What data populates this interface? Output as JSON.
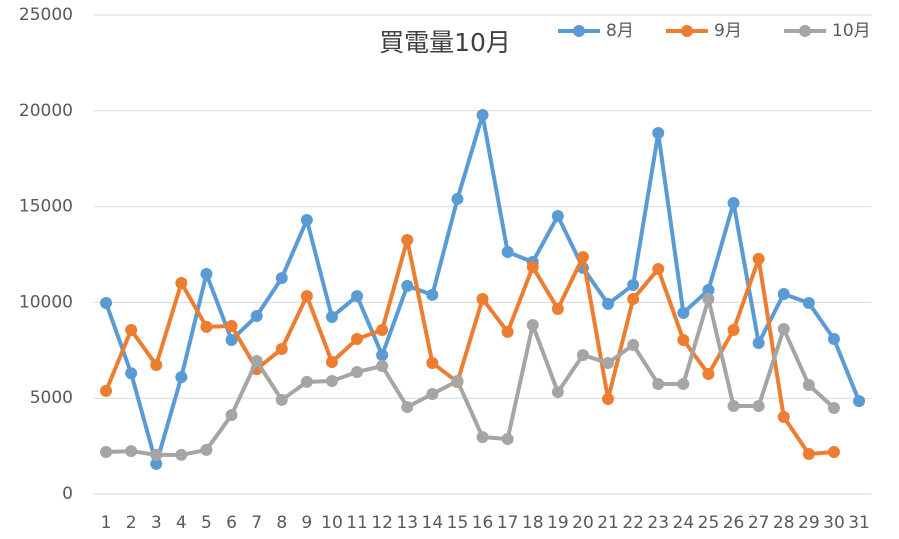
{
  "chart_data": {
    "type": "line",
    "title": "買電量10月",
    "categories": [
      "1",
      "2",
      "3",
      "4",
      "5",
      "6",
      "7",
      "8",
      "9",
      "10",
      "11",
      "12",
      "13",
      "14",
      "15",
      "16",
      "17",
      "18",
      "19",
      "20",
      "21",
      "22",
      "23",
      "24",
      "25",
      "26",
      "27",
      "28",
      "29",
      "30",
      "31"
    ],
    "series": [
      {
        "name": "8月",
        "color": "#5b9bd5",
        "values": [
          9970,
          6300,
          1570,
          6100,
          11480,
          8040,
          9290,
          11270,
          14300,
          9240,
          10330,
          7250,
          10860,
          10390,
          15400,
          19780,
          12630,
          12110,
          14510,
          11800,
          9920,
          10910,
          18840,
          9450,
          10650,
          15190,
          7880,
          10440,
          9970,
          8090,
          4850
        ]
      },
      {
        "name": "9月",
        "color": "#ed7d31",
        "values": [
          5380,
          8560,
          6730,
          11010,
          8720,
          8770,
          6520,
          7570,
          10330,
          6890,
          8090,
          8560,
          13260,
          6840,
          5850,
          10180,
          8460,
          11850,
          9660,
          12370,
          4960,
          10180,
          11740,
          8040,
          6260,
          8560,
          12270,
          4020,
          2090,
          2190,
          null
        ]
      },
      {
        "name": "10月",
        "color": "#a5a5a5",
        "values": [
          2190,
          2240,
          2040,
          2040,
          2300,
          4120,
          6940,
          4910,
          5850,
          5900,
          6370,
          6680,
          4540,
          5220,
          5900,
          2970,
          2870,
          8820,
          5320,
          7250,
          6840,
          7780,
          5740,
          5740,
          10180,
          4590,
          4590,
          8610,
          5690,
          4490,
          null
        ]
      }
    ],
    "ylim": [
      0,
      25000
    ],
    "yticks": [
      0,
      5000,
      10000,
      15000,
      20000,
      25000
    ],
    "grid": true,
    "legend": "top-right"
  }
}
